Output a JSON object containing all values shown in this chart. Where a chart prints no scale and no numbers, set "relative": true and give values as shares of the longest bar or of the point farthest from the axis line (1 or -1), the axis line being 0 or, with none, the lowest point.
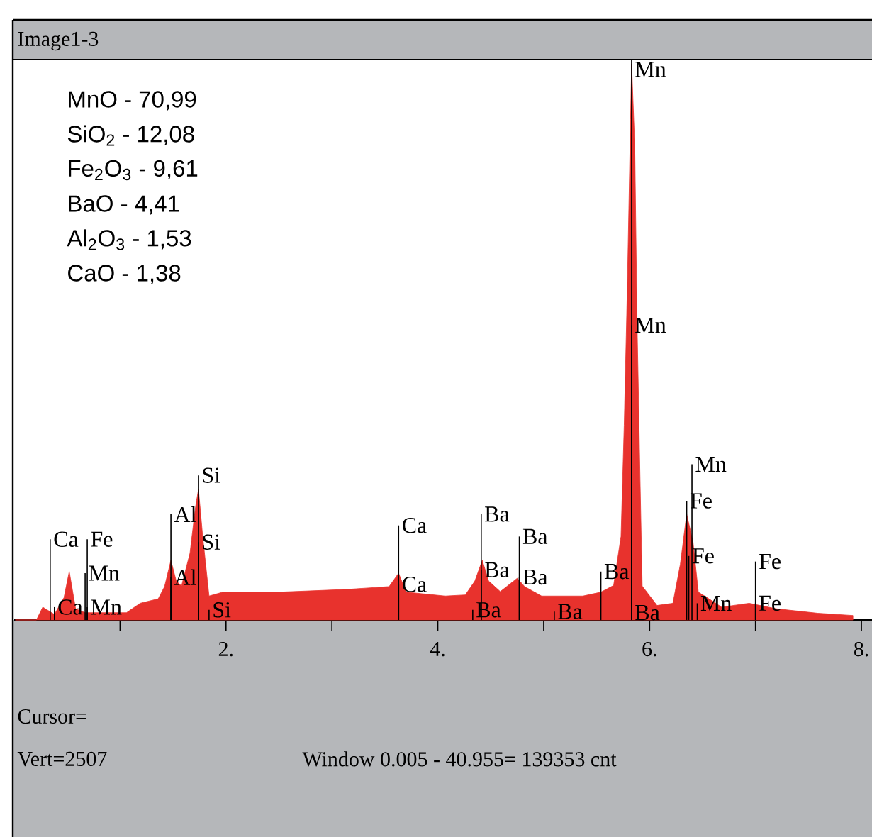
{
  "chart_data": {
    "type": "area",
    "title": "Image1-3",
    "relative": true,
    "color": "#e8322d",
    "xlim": [
      0,
      8.1
    ],
    "ref_lines": [
      {
        "axis": "x",
        "value": 5.83,
        "color": "#000000"
      }
    ],
    "xticks": [
      {
        "value": 1,
        "label": null
      },
      {
        "value": 2,
        "label": "2."
      },
      {
        "value": 3,
        "label": null
      },
      {
        "value": 4,
        "label": "4."
      },
      {
        "value": 5,
        "label": null
      },
      {
        "value": 6,
        "label": "6."
      },
      {
        "value": 7,
        "label": null
      },
      {
        "value": 8,
        "label": "8."
      }
    ],
    "x": [
      0.01,
      0.21,
      0.27,
      0.38,
      0.47,
      0.52,
      0.58,
      0.67,
      1.06,
      1.19,
      1.36,
      1.42,
      1.48,
      1.53,
      1.58,
      1.66,
      1.71,
      1.74,
      1.78,
      1.84,
      1.97,
      2.5,
      3.15,
      3.54,
      3.63,
      3.7,
      4.07,
      4.26,
      4.35,
      4.42,
      4.48,
      4.59,
      4.65,
      4.75,
      4.82,
      4.98,
      5.37,
      5.54,
      5.66,
      5.73,
      5.76,
      5.79,
      5.82,
      5.83,
      5.86,
      5.88,
      5.91,
      5.93,
      6.07,
      6.22,
      6.29,
      6.35,
      6.41,
      6.46,
      6.52,
      6.68,
      6.94,
      7.2,
      7.59,
      7.92
    ],
    "values": [
      0,
      0,
      0.023,
      0.01,
      0.04,
      0.087,
      0.02,
      0.013,
      0.013,
      0.03,
      0.038,
      0.06,
      0.107,
      0.07,
      0.061,
      0.12,
      0.2,
      0.235,
      0.15,
      0.043,
      0.05,
      0.05,
      0.055,
      0.06,
      0.084,
      0.05,
      0.043,
      0.045,
      0.07,
      0.107,
      0.07,
      0.051,
      0.06,
      0.075,
      0.06,
      0.043,
      0.043,
      0.05,
      0.062,
      0.15,
      0.35,
      0.6,
      0.9,
      1,
      0.85,
      0.55,
      0.25,
      0.061,
      0.026,
      0.03,
      0.1,
      0.19,
      0.14,
      0.05,
      0.043,
      0.023,
      0.03,
      0.02,
      0.012,
      0.008
    ],
    "annotations": [
      "MnO - 70,99",
      "SiO$_{2}$ - 12,08",
      "Fe$_{2}$O$_{3}$ - 9,61",
      "BaO - 4,41",
      "Al$_{2}$O$_{3}$ - 1,53",
      "CaO - 1,38",
      "Cursor=",
      "Vert=2507",
      "Window 0.005 - 40.955=   139353 cnt",
      "Mn",
      "Mn",
      "Mn",
      "Fe",
      "Fe",
      "Mn",
      "Fe",
      "Fe",
      "Ba",
      "Ba",
      "Ba",
      "Ba",
      "Ba",
      "Ba",
      "Ba",
      "Ba",
      "Ca",
      "Ca",
      "Si",
      "Si",
      "Si",
      "Al",
      "Al",
      "Ca",
      "Fe",
      "Mn",
      "Ca",
      "Mn"
    ]
  }
}
